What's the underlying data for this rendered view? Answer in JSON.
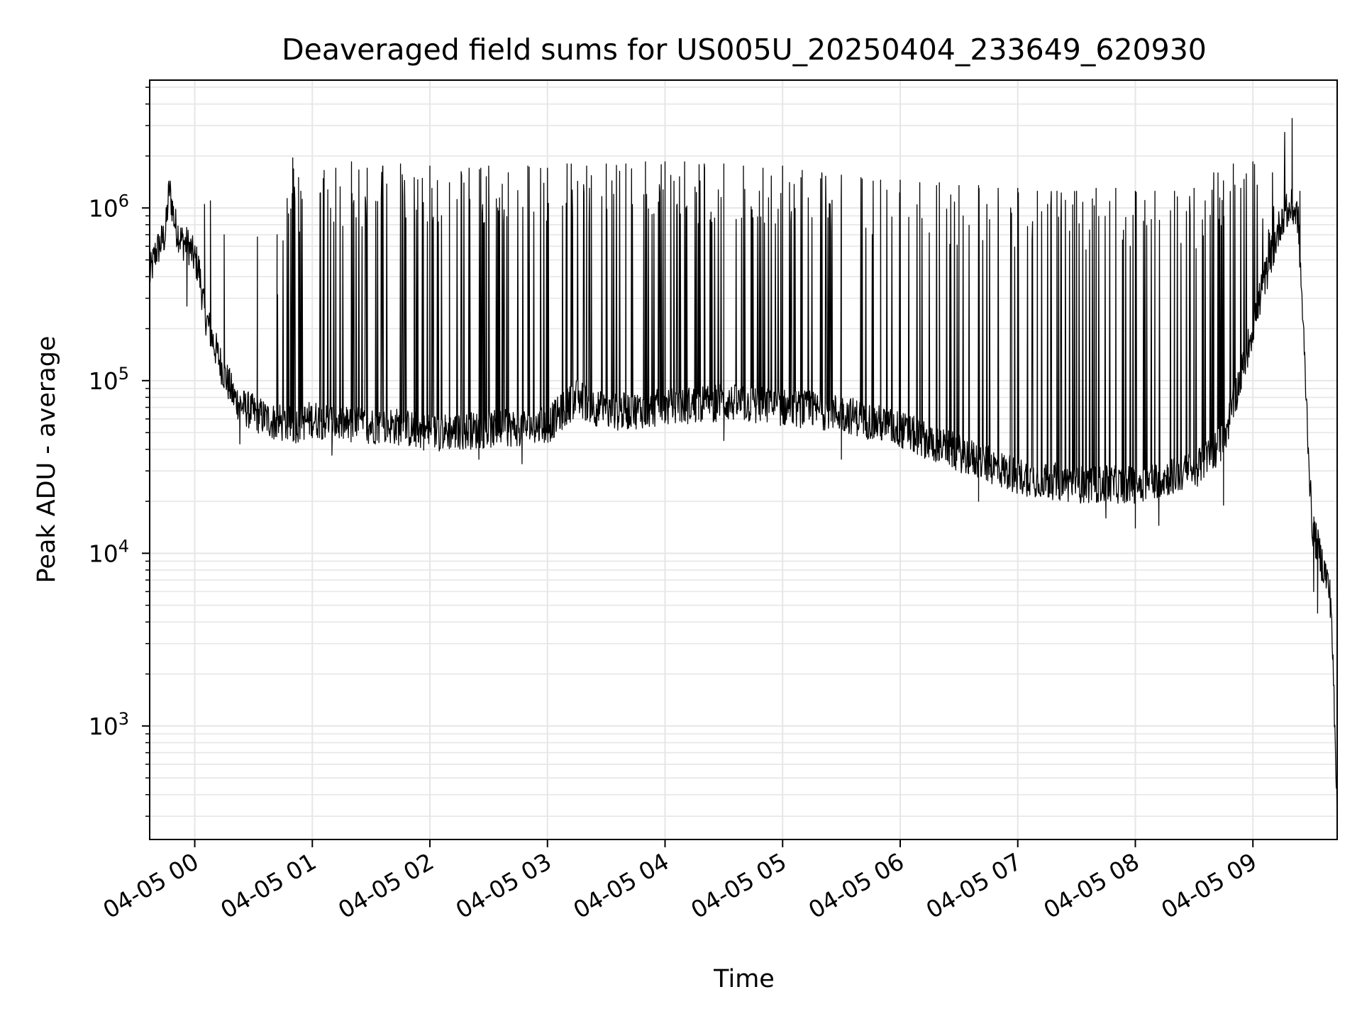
{
  "chart_data": {
    "type": "line",
    "title": "Deaveraged field sums for US005U_20250404_233649_620930",
    "xlabel": "Time",
    "ylabel": "Peak ADU - average",
    "yscale": "log",
    "ylim": [
      220,
      5500000
    ],
    "xlim": [
      "2025-04-04 23:37",
      "2025-04-05 09:43"
    ],
    "grid": true,
    "x_ticks": [
      "04-05 00",
      "04-05 01",
      "04-05 02",
      "04-05 03",
      "04-05 04",
      "04-05 05",
      "04-05 06",
      "04-05 07",
      "04-05 08",
      "04-05 09"
    ],
    "y_ticks": [
      {
        "base": "10",
        "exp": "3",
        "value": 1000
      },
      {
        "base": "10",
        "exp": "4",
        "value": 10000
      },
      {
        "base": "10",
        "exp": "5",
        "value": 100000
      },
      {
        "base": "10",
        "exp": "6",
        "value": 1000000
      }
    ],
    "line_color": "#000000",
    "grid_color": "#e6e6e6",
    "series": [
      {
        "x": [
          "2025-04-04 23:37",
          "2025-04-04 23:40",
          "2025-04-04 23:45",
          "2025-04-04 23:47",
          "2025-04-04 23:50",
          "2025-04-04 23:53",
          "2025-04-04 23:57",
          "2025-04-05 00:02",
          "2025-04-05 00:05",
          "2025-04-05 00:10",
          "2025-04-05 00:15",
          "2025-04-05 00:20",
          "2025-04-05 00:25",
          "2025-04-05 00:30",
          "2025-04-05 00:40",
          "2025-04-05 00:50",
          "2025-04-05 01:00",
          "2025-04-05 01:20",
          "2025-04-05 01:40",
          "2025-04-05 02:00",
          "2025-04-05 02:30",
          "2025-04-05 03:00",
          "2025-04-05 03:15",
          "2025-04-05 03:30",
          "2025-04-05 04:00",
          "2025-04-05 04:30",
          "2025-04-05 05:00",
          "2025-04-05 05:30",
          "2025-04-05 06:00",
          "2025-04-05 06:30",
          "2025-04-05 07:00",
          "2025-04-05 07:30",
          "2025-04-05 08:00",
          "2025-04-05 08:30",
          "2025-04-05 08:45",
          "2025-04-05 08:55",
          "2025-04-05 09:05",
          "2025-04-05 09:15",
          "2025-04-05 09:20",
          "2025-04-05 09:23",
          "2025-04-05 09:25",
          "2025-04-05 09:28",
          "2025-04-05 09:30",
          "2025-04-05 09:32",
          "2025-04-05 09:35",
          "2025-04-05 09:38",
          "2025-04-05 09:40",
          "2025-04-05 09:43"
        ],
        "y": [
          400000,
          550000,
          700000,
          1300000,
          800000,
          650000,
          600000,
          450000,
          250000,
          160000,
          110000,
          80000,
          70000,
          65000,
          58000,
          55000,
          60000,
          55000,
          55000,
          50000,
          52000,
          55000,
          80000,
          65000,
          70000,
          75000,
          70000,
          65000,
          52000,
          38000,
          28000,
          25000,
          25000,
          30000,
          45000,
          120000,
          350000,
          900000,
          1000000,
          900000,
          300000,
          50000,
          15000,
          12000,
          9000,
          7000,
          5000,
          300
        ]
      }
    ],
    "spikes": [
      {
        "x": "2025-04-04 23:48",
        "y": 1100000
      },
      {
        "x": "2025-04-05 00:05",
        "y": 1050000
      },
      {
        "x": "2025-04-05 00:08",
        "y": 1100000
      },
      {
        "x": "2025-04-05 00:15",
        "y": 700000
      },
      {
        "x": "2025-04-05 00:32",
        "y": 680000
      },
      {
        "x": "2025-04-05 00:42",
        "y": 700000
      },
      {
        "x": "2025-04-05 00:50",
        "y": 1950000
      },
      {
        "x": "2025-04-05 00:53",
        "y": 1500000
      },
      {
        "x": "2025-04-05 01:06",
        "y": 1650000
      },
      {
        "x": "2025-04-05 01:12",
        "y": 1700000
      },
      {
        "x": "2025-04-05 01:20",
        "y": 1850000
      },
      {
        "x": "2025-04-05 01:28",
        "y": 1700000
      },
      {
        "x": "2025-04-05 01:36",
        "y": 1750000
      },
      {
        "x": "2025-04-05 01:45",
        "y": 1800000
      },
      {
        "x": "2025-04-05 01:52",
        "y": 1500000
      },
      {
        "x": "2025-04-05 02:00",
        "y": 1750000
      },
      {
        "x": "2025-04-05 02:10",
        "y": 1400000
      },
      {
        "x": "2025-04-05 02:20",
        "y": 1700000
      },
      {
        "x": "2025-04-05 02:30",
        "y": 1750000
      },
      {
        "x": "2025-04-05 02:40",
        "y": 1600000
      },
      {
        "x": "2025-04-05 02:50",
        "y": 1750000
      },
      {
        "x": "2025-04-05 03:00",
        "y": 1700000
      },
      {
        "x": "2025-04-05 03:10",
        "y": 1800000
      },
      {
        "x": "2025-04-05 03:20",
        "y": 1750000
      },
      {
        "x": "2025-04-05 03:30",
        "y": 1800000
      },
      {
        "x": "2025-04-05 03:40",
        "y": 1800000
      },
      {
        "x": "2025-04-05 03:50",
        "y": 1850000
      },
      {
        "x": "2025-04-05 04:00",
        "y": 1850000
      },
      {
        "x": "2025-04-05 04:10",
        "y": 1850000
      },
      {
        "x": "2025-04-05 04:20",
        "y": 1800000
      },
      {
        "x": "2025-04-05 04:30",
        "y": 1800000
      },
      {
        "x": "2025-04-05 04:40",
        "y": 1750000
      },
      {
        "x": "2025-04-05 04:50",
        "y": 1700000
      },
      {
        "x": "2025-04-05 05:00",
        "y": 1750000
      },
      {
        "x": "2025-04-05 05:10",
        "y": 1650000
      },
      {
        "x": "2025-04-05 05:20",
        "y": 1600000
      },
      {
        "x": "2025-04-05 05:30",
        "y": 1550000
      },
      {
        "x": "2025-04-05 05:40",
        "y": 1500000
      },
      {
        "x": "2025-04-05 05:50",
        "y": 1450000
      },
      {
        "x": "2025-04-05 06:00",
        "y": 1450000
      },
      {
        "x": "2025-04-05 06:10",
        "y": 1400000
      },
      {
        "x": "2025-04-05 06:20",
        "y": 1400000
      },
      {
        "x": "2025-04-05 06:30",
        "y": 1350000
      },
      {
        "x": "2025-04-05 06:40",
        "y": 1350000
      },
      {
        "x": "2025-04-05 06:50",
        "y": 1300000
      },
      {
        "x": "2025-04-05 07:00",
        "y": 1300000
      },
      {
        "x": "2025-04-05 07:10",
        "y": 1250000
      },
      {
        "x": "2025-04-05 07:20",
        "y": 1250000
      },
      {
        "x": "2025-04-05 07:30",
        "y": 1250000
      },
      {
        "x": "2025-04-05 07:40",
        "y": 1300000
      },
      {
        "x": "2025-04-05 07:50",
        "y": 1300000
      },
      {
        "x": "2025-04-05 08:00",
        "y": 1250000
      },
      {
        "x": "2025-04-05 08:10",
        "y": 1250000
      },
      {
        "x": "2025-04-05 08:20",
        "y": 1250000
      },
      {
        "x": "2025-04-05 08:30",
        "y": 1300000
      },
      {
        "x": "2025-04-05 08:40",
        "y": 1600000
      },
      {
        "x": "2025-04-05 08:50",
        "y": 1800000
      },
      {
        "x": "2025-04-05 09:00",
        "y": 1850000
      },
      {
        "x": "2025-04-05 09:10",
        "y": 1600000
      },
      {
        "x": "2025-04-05 09:20",
        "y": 3300000
      },
      {
        "x": "2025-04-05 09:24",
        "y": 1250000
      }
    ],
    "dips": [
      {
        "x": "2025-04-04 23:56",
        "y": 270000
      },
      {
        "x": "2025-04-05 00:23",
        "y": 43000
      },
      {
        "x": "2025-04-05 01:10",
        "y": 37000
      },
      {
        "x": "2025-04-05 02:25",
        "y": 35000
      },
      {
        "x": "2025-04-05 02:47",
        "y": 33000
      },
      {
        "x": "2025-04-05 04:30",
        "y": 45000
      },
      {
        "x": "2025-04-05 05:30",
        "y": 35000
      },
      {
        "x": "2025-04-05 06:40",
        "y": 20000
      },
      {
        "x": "2025-04-05 07:45",
        "y": 16000
      },
      {
        "x": "2025-04-05 08:00",
        "y": 14000
      },
      {
        "x": "2025-04-05 08:12",
        "y": 14500
      },
      {
        "x": "2025-04-05 08:45",
        "y": 19000
      },
      {
        "x": "2025-04-05 09:31",
        "y": 6000
      },
      {
        "x": "2025-04-05 09:33",
        "y": 4500
      }
    ]
  }
}
